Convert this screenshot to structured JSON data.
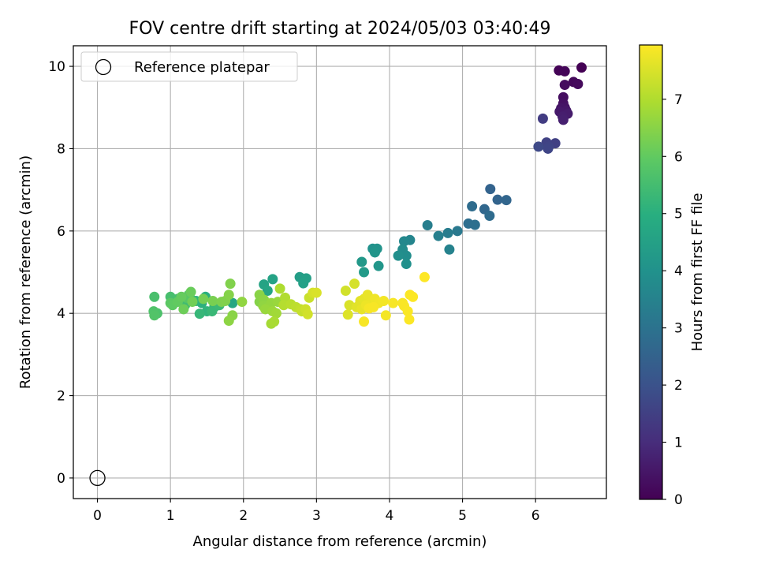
{
  "chart_data": {
    "type": "scatter",
    "title": "FOV centre drift starting at 2024/05/03 03:40:49",
    "xlabel": "Angular distance from reference (arcmin)",
    "ylabel": "Rotation from reference (arcmin)",
    "xlim": [
      -0.33,
      6.97
    ],
    "ylim": [
      -0.5,
      10.5
    ],
    "xticks": [
      0,
      1,
      2,
      3,
      4,
      5,
      6
    ],
    "yticks": [
      0,
      2,
      4,
      6,
      8,
      10
    ],
    "grid": true,
    "legend": {
      "placement": "top-left",
      "entries": [
        "Reference platepar"
      ]
    },
    "reference_point": {
      "x": 0,
      "y": 0,
      "marker": "open-circle",
      "label": "Reference platepar"
    },
    "colorbar": {
      "label": "Hours from first FF file",
      "colormap": "viridis",
      "range": [
        0,
        7.95
      ],
      "ticks": [
        0,
        1,
        2,
        3,
        4,
        5,
        6,
        7
      ]
    },
    "series": [
      {
        "color_by": "hours",
        "points": [
          [
            6.63,
            9.97,
            0.0
          ],
          [
            6.32,
            9.9,
            0.05
          ],
          [
            6.4,
            9.88,
            0.1
          ],
          [
            6.52,
            9.62,
            0.15
          ],
          [
            6.58,
            9.57,
            0.2
          ],
          [
            6.4,
            9.55,
            0.25
          ],
          [
            6.38,
            9.25,
            0.3
          ],
          [
            6.38,
            9.1,
            0.35
          ],
          [
            6.4,
            9.0,
            0.4
          ],
          [
            6.35,
            8.98,
            0.45
          ],
          [
            6.42,
            8.92,
            0.5
          ],
          [
            6.33,
            8.9,
            0.55
          ],
          [
            6.44,
            8.85,
            0.6
          ],
          [
            6.37,
            8.78,
            0.65
          ],
          [
            6.38,
            8.7,
            0.7
          ],
          [
            6.1,
            8.73,
            1.4
          ],
          [
            6.27,
            8.13,
            1.5
          ],
          [
            6.15,
            8.15,
            1.55
          ],
          [
            6.18,
            8.05,
            1.6
          ],
          [
            6.17,
            8.0,
            1.65
          ],
          [
            6.04,
            8.05,
            1.75
          ],
          [
            5.38,
            7.02,
            2.5
          ],
          [
            5.48,
            6.76,
            2.55
          ],
          [
            5.6,
            6.75,
            2.6
          ],
          [
            5.3,
            6.53,
            2.65
          ],
          [
            5.37,
            6.37,
            2.75
          ],
          [
            5.13,
            6.6,
            2.8
          ],
          [
            5.08,
            6.18,
            2.85
          ],
          [
            5.17,
            6.15,
            2.9
          ],
          [
            4.93,
            6.0,
            3.2
          ],
          [
            4.8,
            5.95,
            3.3
          ],
          [
            4.52,
            6.14,
            3.35
          ],
          [
            4.67,
            5.88,
            3.4
          ],
          [
            4.82,
            5.55,
            3.5
          ],
          [
            4.28,
            5.78,
            3.6
          ],
          [
            4.2,
            5.75,
            3.7
          ],
          [
            4.18,
            5.55,
            3.8
          ],
          [
            4.23,
            5.4,
            3.85
          ],
          [
            4.12,
            5.4,
            3.9
          ],
          [
            4.23,
            5.2,
            3.95
          ],
          [
            3.77,
            5.57,
            4.0
          ],
          [
            3.83,
            5.57,
            4.05
          ],
          [
            3.8,
            5.48,
            4.1
          ],
          [
            3.85,
            5.15,
            4.15
          ],
          [
            3.62,
            5.25,
            4.2
          ],
          [
            3.65,
            5.0,
            4.3
          ],
          [
            2.77,
            4.88,
            4.4
          ],
          [
            2.86,
            4.85,
            4.45
          ],
          [
            2.82,
            4.73,
            4.5
          ],
          [
            2.4,
            4.83,
            4.55
          ],
          [
            2.28,
            4.7,
            4.6
          ],
          [
            2.33,
            4.55,
            4.65
          ],
          [
            1.85,
            4.25,
            4.7
          ],
          [
            1.48,
            4.4,
            5.0
          ],
          [
            1.43,
            4.25,
            5.05
          ],
          [
            1.35,
            4.3,
            5.1
          ],
          [
            1.5,
            4.05,
            5.15
          ],
          [
            1.6,
            4.15,
            5.2
          ],
          [
            1.4,
            3.99,
            5.25
          ],
          [
            1.57,
            4.05,
            5.3
          ],
          [
            1.67,
            4.2,
            5.35
          ],
          [
            1.3,
            4.32,
            5.4
          ],
          [
            1.2,
            4.2,
            5.45
          ],
          [
            1.1,
            4.35,
            5.5
          ],
          [
            1.0,
            4.4,
            5.55
          ],
          [
            0.78,
            4.4,
            5.6
          ],
          [
            0.82,
            4.0,
            5.65
          ],
          [
            0.77,
            4.05,
            5.7
          ],
          [
            0.78,
            3.95,
            5.75
          ],
          [
            1.25,
            4.45,
            5.8
          ],
          [
            1.22,
            4.38,
            5.85
          ],
          [
            1.0,
            4.25,
            5.9
          ],
          [
            1.03,
            4.2,
            5.95
          ],
          [
            1.1,
            4.28,
            6.0
          ],
          [
            1.15,
            4.4,
            6.05
          ],
          [
            1.28,
            4.52,
            6.1
          ],
          [
            1.18,
            4.1,
            6.15
          ],
          [
            1.3,
            4.28,
            6.2
          ],
          [
            1.45,
            4.35,
            6.25
          ],
          [
            1.58,
            4.3,
            6.3
          ],
          [
            1.7,
            4.28,
            6.35
          ],
          [
            1.75,
            4.3,
            6.4
          ],
          [
            1.82,
            4.72,
            6.4
          ],
          [
            1.8,
            4.45,
            6.45
          ],
          [
            1.85,
            3.95,
            6.5
          ],
          [
            1.8,
            3.82,
            6.55
          ],
          [
            1.98,
            4.28,
            6.6
          ],
          [
            2.22,
            4.28,
            6.45
          ],
          [
            2.22,
            4.45,
            6.5
          ],
          [
            2.28,
            4.33,
            6.55
          ],
          [
            2.27,
            4.18,
            6.6
          ],
          [
            2.38,
            4.25,
            6.65
          ],
          [
            2.47,
            4.28,
            6.7
          ],
          [
            2.3,
            4.1,
            6.7
          ],
          [
            2.4,
            4.05,
            6.75
          ],
          [
            2.45,
            4.0,
            6.8
          ],
          [
            2.38,
            3.75,
            6.85
          ],
          [
            2.42,
            3.8,
            6.9
          ],
          [
            2.5,
            4.6,
            6.95
          ],
          [
            2.57,
            4.38,
            7.0
          ],
          [
            2.55,
            4.2,
            7.05
          ],
          [
            2.65,
            4.22,
            7.1
          ],
          [
            2.72,
            4.15,
            7.15
          ],
          [
            2.78,
            4.1,
            7.2
          ],
          [
            2.8,
            4.05,
            7.25
          ],
          [
            2.9,
            4.38,
            7.3
          ],
          [
            2.85,
            4.1,
            7.35
          ],
          [
            2.88,
            3.98,
            7.4
          ],
          [
            2.95,
            4.5,
            7.45
          ],
          [
            3.0,
            4.5,
            7.5
          ],
          [
            3.4,
            4.55,
            7.4
          ],
          [
            3.52,
            4.72,
            7.45
          ],
          [
            3.45,
            4.2,
            7.5
          ],
          [
            3.43,
            3.97,
            7.55
          ],
          [
            3.55,
            4.15,
            7.6
          ],
          [
            3.6,
            4.3,
            7.62
          ],
          [
            3.65,
            4.35,
            7.65
          ],
          [
            3.62,
            4.1,
            7.68
          ],
          [
            3.7,
            4.45,
            7.7
          ],
          [
            3.75,
            4.25,
            7.72
          ],
          [
            3.68,
            4.2,
            7.75
          ],
          [
            3.8,
            4.35,
            7.78
          ],
          [
            3.85,
            4.25,
            7.8
          ],
          [
            3.92,
            4.3,
            7.82
          ],
          [
            3.95,
            3.95,
            7.84
          ],
          [
            3.72,
            4.12,
            7.86
          ],
          [
            3.78,
            4.15,
            7.87
          ],
          [
            3.65,
            3.8,
            7.88
          ],
          [
            4.05,
            4.25,
            7.88
          ],
          [
            4.18,
            4.25,
            7.89
          ],
          [
            4.2,
            4.18,
            7.9
          ],
          [
            4.25,
            4.05,
            7.91
          ],
          [
            4.27,
            3.85,
            7.92
          ],
          [
            4.28,
            4.45,
            7.93
          ],
          [
            4.32,
            4.4,
            7.94
          ],
          [
            4.48,
            4.88,
            7.95
          ]
        ]
      }
    ]
  }
}
